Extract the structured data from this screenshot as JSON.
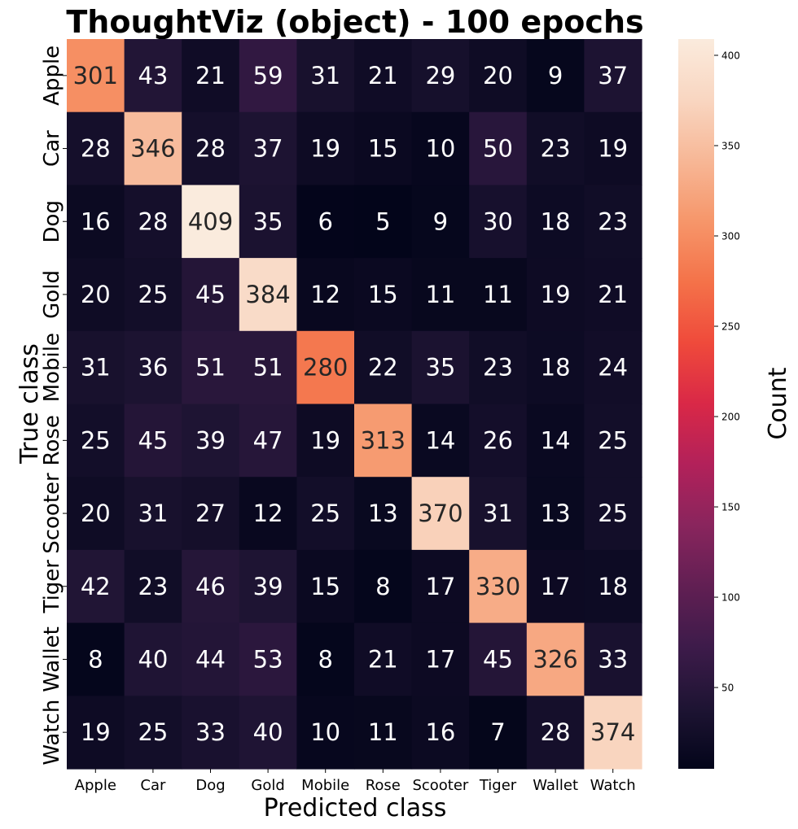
{
  "chart_data": {
    "type": "heatmap",
    "title": "ThoughtViz (object) - 100 epochs",
    "xlabel": "Predicted class",
    "ylabel": "True class",
    "colorbar_label": "Count",
    "x_categories": [
      "Apple",
      "Car",
      "Dog",
      "Gold",
      "Mobile",
      "Rose",
      "Scooter",
      "Tiger",
      "Wallet",
      "Watch"
    ],
    "y_categories": [
      "Apple",
      "Car",
      "Dog",
      "Gold",
      "Mobile",
      "Rose",
      "Scooter",
      "Tiger",
      "Wallet",
      "Watch"
    ],
    "values": [
      [
        301,
        43,
        21,
        59,
        31,
        21,
        29,
        20,
        9,
        37
      ],
      [
        28,
        346,
        28,
        37,
        19,
        15,
        10,
        50,
        23,
        19
      ],
      [
        16,
        28,
        409,
        35,
        6,
        5,
        9,
        30,
        18,
        23
      ],
      [
        20,
        25,
        45,
        384,
        12,
        15,
        11,
        11,
        19,
        21
      ],
      [
        31,
        36,
        51,
        51,
        280,
        22,
        35,
        23,
        18,
        24
      ],
      [
        25,
        45,
        39,
        47,
        19,
        313,
        14,
        26,
        14,
        25
      ],
      [
        20,
        31,
        27,
        12,
        25,
        13,
        370,
        31,
        13,
        25
      ],
      [
        42,
        23,
        46,
        39,
        15,
        8,
        17,
        330,
        17,
        18
      ],
      [
        8,
        40,
        44,
        53,
        8,
        21,
        17,
        45,
        326,
        33
      ],
      [
        19,
        25,
        33,
        40,
        10,
        11,
        16,
        7,
        28,
        374
      ]
    ],
    "color_range": [
      5,
      409
    ],
    "colorbar_ticks": [
      50,
      100,
      150,
      200,
      250,
      300,
      350,
      400
    ],
    "colormap": "rocket",
    "colormap_stops": [
      "#03051a",
      "#1e1433",
      "#3d1b4a",
      "#611f53",
      "#89255d",
      "#b2215a",
      "#d92847",
      "#ef4a3b",
      "#f47249",
      "#f6966a",
      "#f7b796",
      "#f9d6c1",
      "#faebdd"
    ]
  }
}
